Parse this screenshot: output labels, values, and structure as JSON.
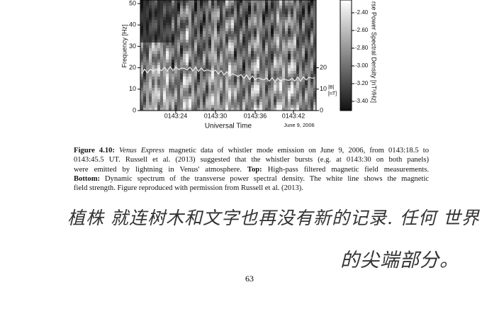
{
  "figure": {
    "freq_axis": {
      "label": "Frequency [Hz]",
      "ticks": [
        50,
        40,
        30,
        20,
        10,
        0
      ]
    },
    "b_axis": {
      "label_top": "|B|",
      "label_bottom": "[nT]",
      "ticks": [
        20,
        10,
        0
      ]
    },
    "colorbar": {
      "label": "rse Power Spectral Density [nT²/Hz]",
      "ticks": [
        {
          "value": -2.4,
          "label": "-2.40"
        },
        {
          "value": -2.6,
          "label": "-2.60"
        },
        {
          "value": -2.8,
          "label": "-2.80"
        },
        {
          "value": -3.0,
          "label": "-3.00"
        },
        {
          "value": -3.2,
          "label": "-3.20"
        },
        {
          "value": -3.4,
          "label": "-3.40"
        }
      ]
    },
    "time_axis": {
      "label": "Universal Time",
      "date": "June 9, 2006",
      "ticks": [
        "0143:24",
        "0143:30",
        "0143:36",
        "0143:42"
      ]
    }
  },
  "caption": {
    "lines": [
      [
        {
          "b": "Figure 4.10:"
        },
        {
          "i": " Venus Express"
        },
        {
          "t": " magnetic data of whistler mode emission on June 9, 2006, from 0143:18.5 to"
        }
      ],
      [
        {
          "t": "0143:45.5 UT. Russell et al. (2013) suggested that the whistler bursts (e.g. at 0143:30 on both panels)"
        }
      ],
      [
        {
          "t": "were emitted by lightning in Venus' atmosphere. "
        },
        {
          "b": "Top:"
        },
        {
          "t": " High-pass filtered magnetic field measurements."
        }
      ],
      [
        {
          "b": "Bottom:"
        },
        {
          "t": " Dynamic spectrum of the transverse power spectral density. The white line shows the magnetic"
        }
      ],
      [
        {
          "t": "field strength. Figure reproduced with permission from Russell et al. (2013)."
        }
      ]
    ]
  },
  "handwriting": [
    "植株 就连树木和文字也再没有新的记录. 任何 世界",
    "的尖端部分。"
  ],
  "page_number": "63"
}
